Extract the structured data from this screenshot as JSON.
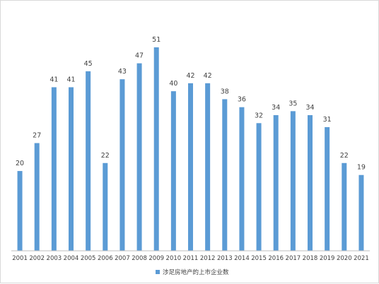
{
  "chart_data": {
    "type": "bar",
    "categories": [
      "2001",
      "2002",
      "2003",
      "2004",
      "2005",
      "2006",
      "2007",
      "2008",
      "2009",
      "2010",
      "2011",
      "2012",
      "2013",
      "2014",
      "2015",
      "2016",
      "2017",
      "2018",
      "2019",
      "2020",
      "2021"
    ],
    "series": [
      {
        "name": "涉足房地产的上市企业数",
        "values": [
          20,
          27,
          41,
          41,
          45,
          22,
          43,
          47,
          51,
          40,
          42,
          42,
          38,
          36,
          32,
          34,
          35,
          34,
          31,
          22,
          19
        ],
        "color": "#5b9bd5"
      }
    ],
    "ylim": [
      0,
      51
    ],
    "grid": false,
    "data_labels": true,
    "legend_position": "bottom"
  }
}
